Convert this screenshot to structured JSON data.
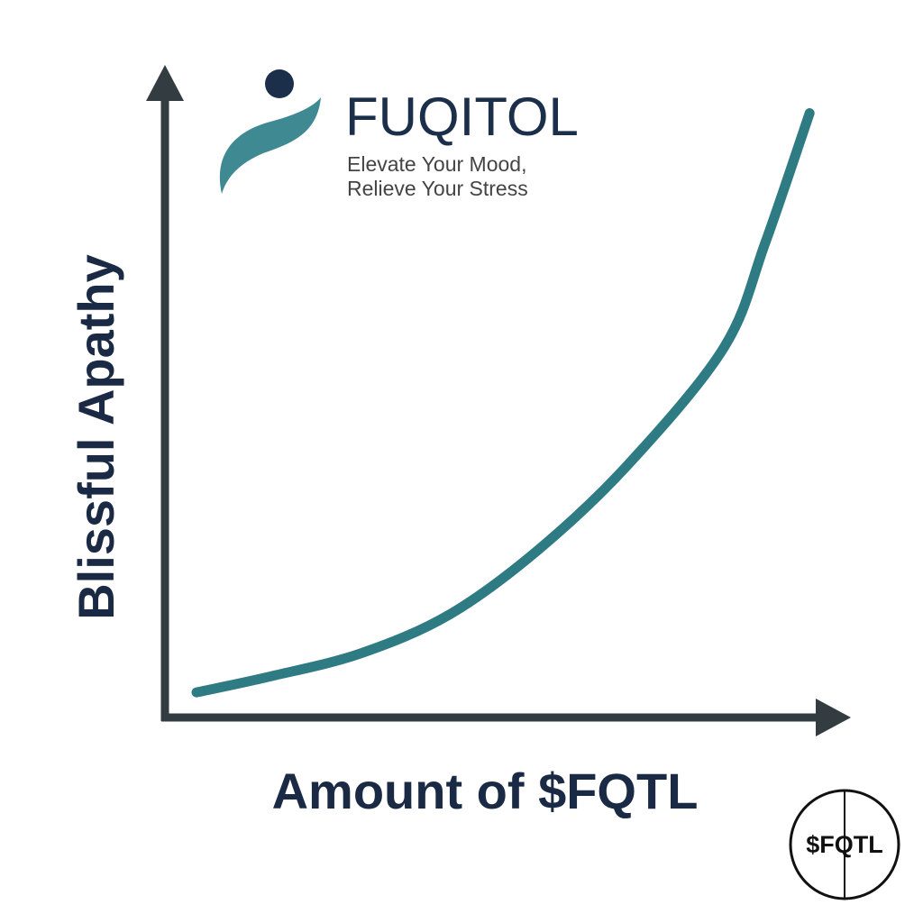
{
  "chart_data": {
    "type": "line",
    "x_label": "Amount of $FQTL",
    "y_label": "Blissful Apathy",
    "x": [
      5,
      16,
      29,
      42,
      55,
      68,
      82,
      88,
      94.5
    ],
    "series": [
      {
        "color": "#2e7b84",
        "values": [
          4,
          6.5,
          10,
          16,
          26,
          39,
          57,
          73,
          93
        ]
      }
    ],
    "xlim": [
      0,
      100
    ],
    "ylim": [
      0,
      100
    ],
    "grid": false
  },
  "logo": {
    "name": "FUQITOL",
    "tagline": [
      "Elevate Your Mood,",
      "Relieve Your Stress"
    ]
  },
  "badge": "$FQTL"
}
